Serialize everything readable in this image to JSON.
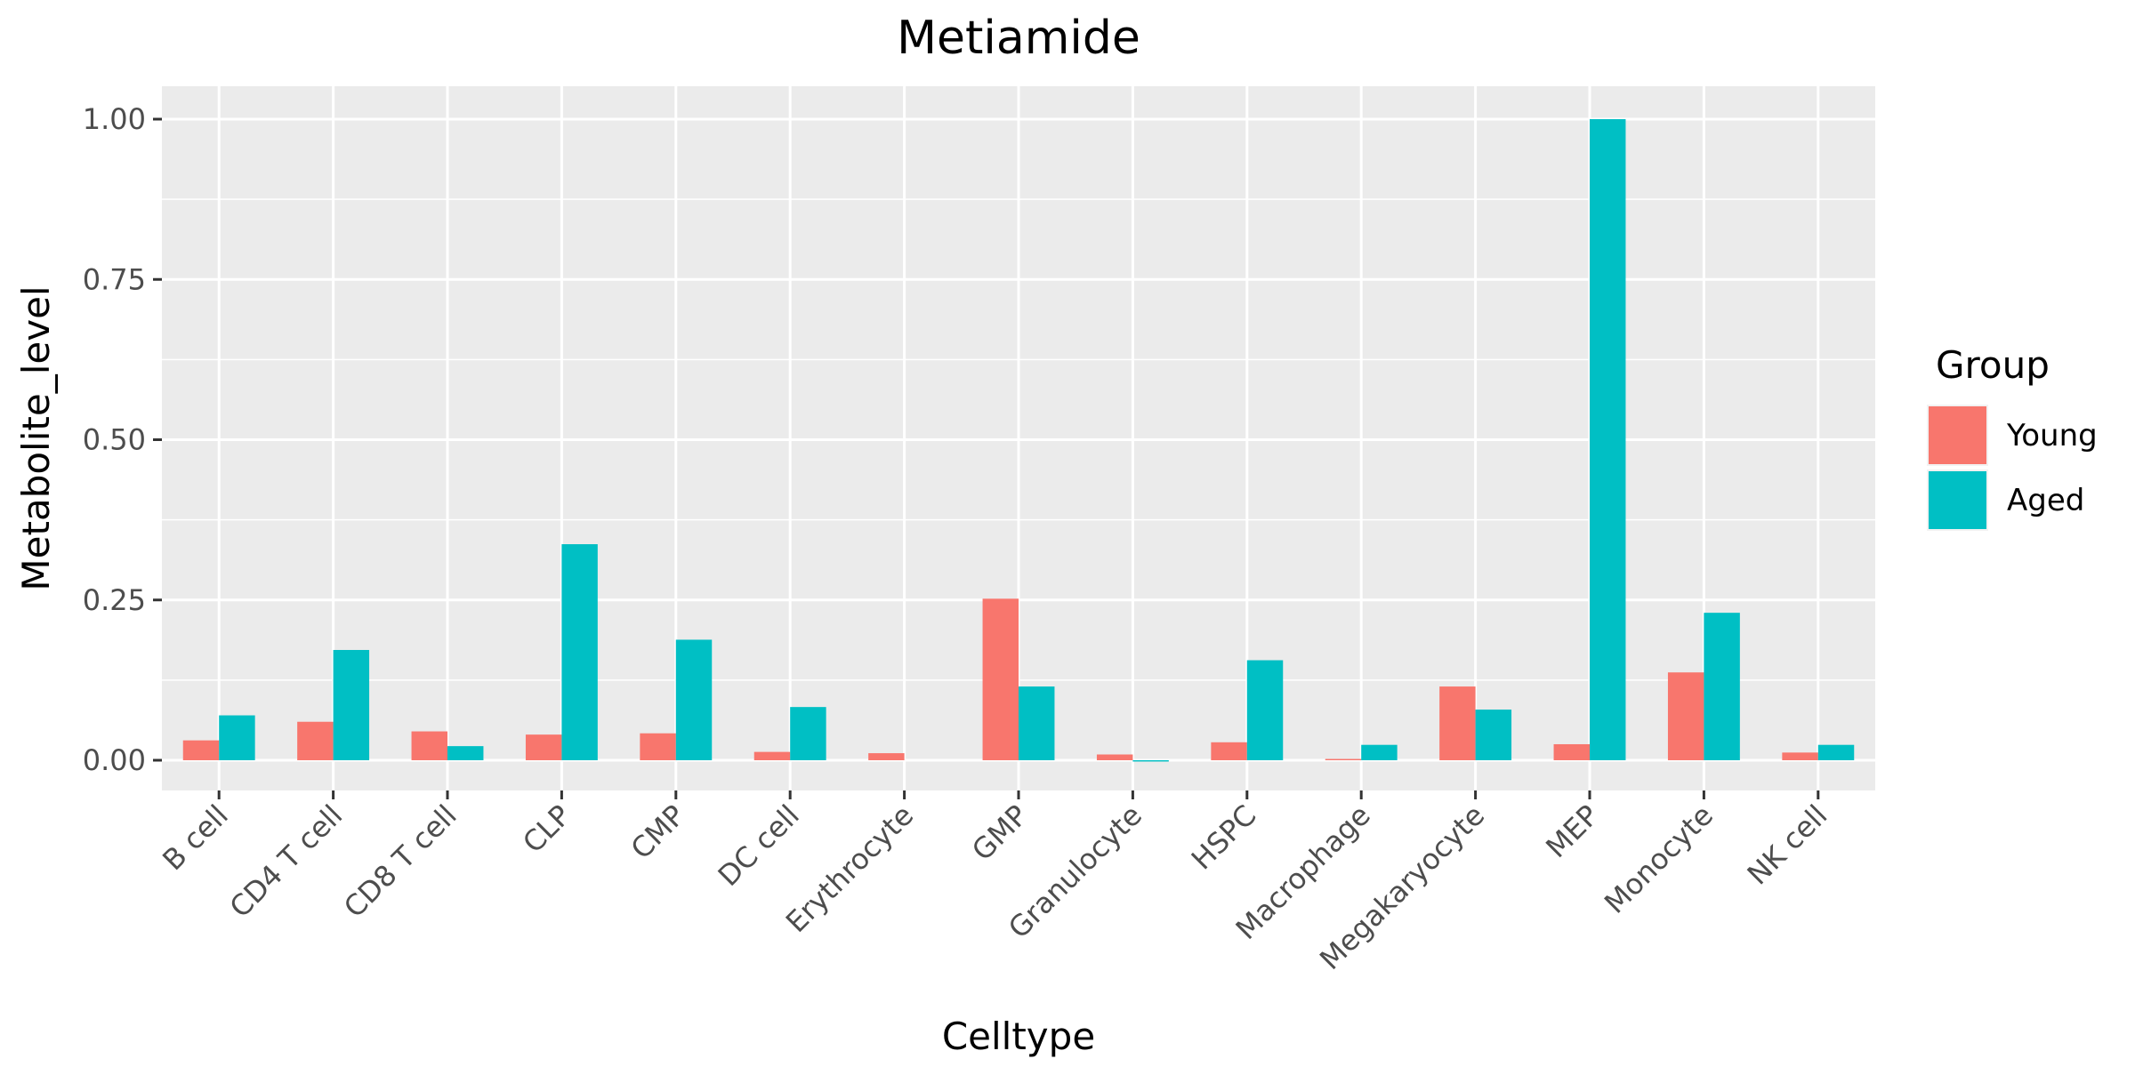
{
  "chart_data": {
    "type": "bar",
    "title": "Metiamide",
    "xlabel": "Celltype",
    "ylabel": "Metabolite_level",
    "ylim": [
      -0.05,
      1.05
    ],
    "yticks": [
      0.0,
      0.25,
      0.5,
      0.75,
      1.0
    ],
    "ytick_labels": [
      "0.00",
      "0.25",
      "0.50",
      "0.75",
      "1.00"
    ],
    "grid": true,
    "legend_title": "Group",
    "legend_position": "right",
    "categories": [
      "B cell",
      "CD4 T cell",
      "CD8 T cell",
      "CLP",
      "CMP",
      "DC cell",
      "Erythrocyte",
      "GMP",
      "Granulocyte",
      "HSPC",
      "Macrophage",
      "Megakaryocyte",
      "MEP",
      "Monocyte",
      "NK cell"
    ],
    "series": [
      {
        "name": "Young",
        "color": "#F8766D",
        "values": [
          0.031,
          0.06,
          0.045,
          0.04,
          0.042,
          0.013,
          0.011,
          0.252,
          0.009,
          0.028,
          0.002,
          0.115,
          0.025,
          0.137,
          0.012
        ]
      },
      {
        "name": "Aged",
        "color": "#00BFC4",
        "values": [
          0.07,
          0.172,
          0.022,
          0.337,
          0.188,
          0.083,
          0.0,
          0.115,
          -0.002,
          0.156,
          0.024,
          0.079,
          1.0,
          0.23,
          0.024
        ]
      }
    ]
  }
}
